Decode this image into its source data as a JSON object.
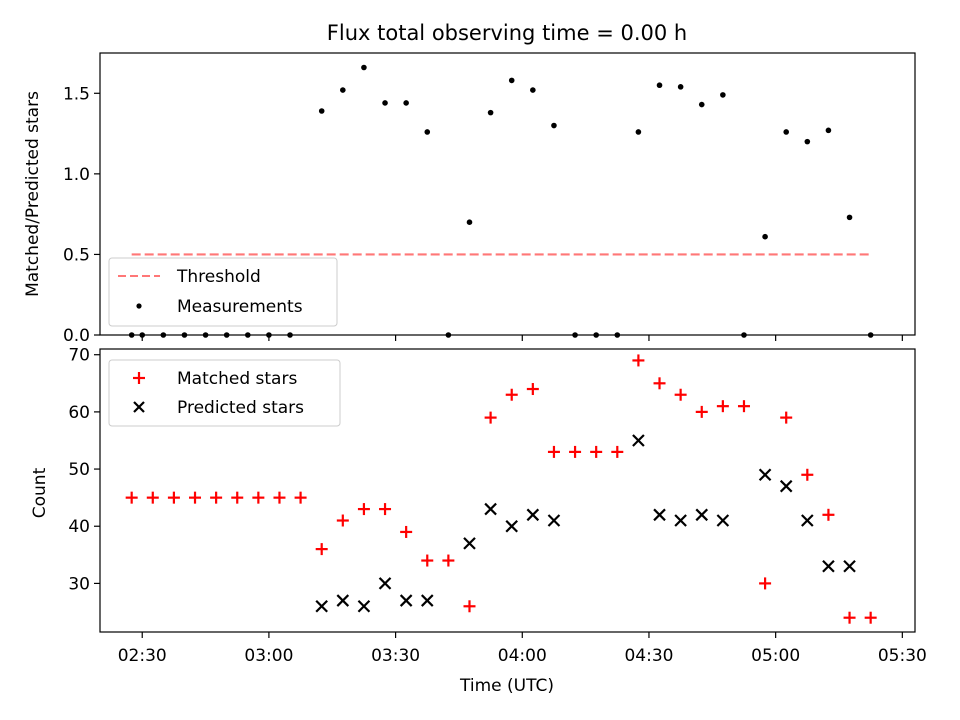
{
  "figure_title": "Flux total observing time = 0.00 h",
  "chart_data": [
    {
      "type": "scatter",
      "panel": "top",
      "title": "Flux total observing time = 0.00 h",
      "xlabel": "",
      "ylabel": "Matched/Predicted stars",
      "xlim_min": [
        140,
        333
      ],
      "ylim": [
        -0.0,
        1.75
      ],
      "yticks": [
        0.0,
        0.5,
        1.0,
        1.5
      ],
      "ytick_labels": [
        "0.0",
        "0.5",
        "1.0",
        "1.5"
      ],
      "legend_position": "lower-left",
      "series": [
        {
          "name": "Threshold",
          "kind": "line",
          "style": "dashed",
          "color": "#ff7777",
          "x": [
            147.5,
            322.5
          ],
          "y": [
            0.5,
            0.5
          ]
        },
        {
          "name": "Measurements",
          "kind": "points",
          "marker": "dot",
          "color": "#000000",
          "x": [
            147.5,
            150,
            155,
            160,
            165,
            170,
            175,
            180,
            185,
            192.5,
            197.5,
            202.5,
            207.5,
            212.5,
            217.5,
            222.5,
            227.5,
            232.5,
            237.5,
            242.5,
            247.5,
            252.5,
            257.5,
            262.5,
            267.5,
            272.5,
            277.5,
            282.5,
            287.5,
            292.5,
            297.5,
            302.5,
            307.5,
            312.5,
            317.5,
            322.5
          ],
          "y": [
            0.0,
            0.0,
            0.0,
            0.0,
            0.0,
            0.0,
            0.0,
            0.0,
            0.0,
            1.39,
            1.52,
            1.66,
            1.44,
            1.44,
            1.26,
            0.0,
            0.7,
            1.38,
            1.58,
            1.52,
            1.3,
            0.0,
            0.0,
            0.0,
            1.26,
            1.55,
            1.54,
            1.43,
            1.49,
            0.0,
            0.61,
            1.26,
            1.2,
            1.27,
            0.73,
            0.0
          ]
        }
      ]
    },
    {
      "type": "scatter",
      "panel": "bottom",
      "xlabel": "Time (UTC)",
      "ylabel": "Count",
      "xlim_min": [
        140,
        333
      ],
      "ylim": [
        21.5,
        71
      ],
      "yticks": [
        30,
        40,
        50,
        60,
        70
      ],
      "ytick_labels": [
        "30",
        "40",
        "50",
        "60",
        "70"
      ],
      "xticks_min": [
        150,
        180,
        210,
        240,
        270,
        300,
        330
      ],
      "xtick_labels": [
        "02:30",
        "03:00",
        "03:30",
        "04:00",
        "04:30",
        "05:00",
        "05:30"
      ],
      "legend_position": "upper-left",
      "series": [
        {
          "name": "Matched stars",
          "kind": "points",
          "marker": "plus",
          "color": "#ff0000",
          "x": [
            147.5,
            152.5,
            157.5,
            162.5,
            167.5,
            172.5,
            177.5,
            182.5,
            187.5,
            192.5,
            197.5,
            202.5,
            207.5,
            212.5,
            217.5,
            222.5,
            227.5,
            232.5,
            237.5,
            242.5,
            247.5,
            252.5,
            257.5,
            262.5,
            267.5,
            272.5,
            277.5,
            282.5,
            287.5,
            292.5,
            297.5,
            302.5,
            307.5,
            312.5,
            317.5,
            322.5
          ],
          "y": [
            45,
            45,
            45,
            45,
            45,
            45,
            45,
            45,
            45,
            36,
            41,
            43,
            43,
            39,
            34,
            34,
            26,
            59,
            63,
            64,
            53,
            53,
            53,
            53,
            69,
            65,
            63,
            60,
            61,
            61,
            30,
            59,
            49,
            42,
            24,
            24
          ]
        },
        {
          "name": "Predicted stars",
          "kind": "points",
          "marker": "x",
          "color": "#000000",
          "x": [
            192.5,
            197.5,
            202.5,
            207.5,
            212.5,
            217.5,
            227.5,
            232.5,
            237.5,
            242.5,
            247.5,
            267.5,
            272.5,
            277.5,
            282.5,
            287.5,
            297.5,
            302.5,
            307.5,
            312.5,
            317.5
          ],
          "y": [
            26,
            27,
            26,
            30,
            27,
            27,
            37,
            43,
            40,
            42,
            41,
            55,
            42,
            41,
            42,
            41,
            49,
            47,
            41,
            33,
            33
          ]
        }
      ]
    }
  ]
}
